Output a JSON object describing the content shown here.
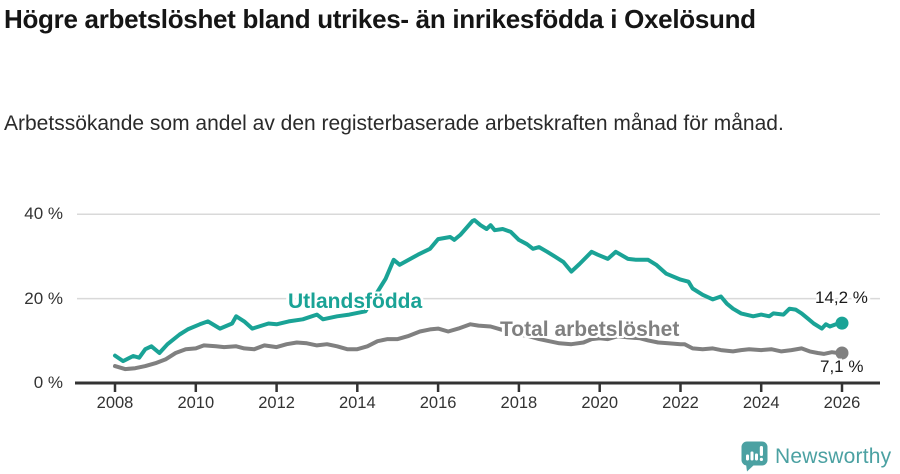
{
  "header": {
    "title": "Högre arbetslöshet bland utrikes- än inrikesfödda i Oxelösund",
    "subtitle": "Arbetssökande som andel av den registerbaserade arbetskraften månad för månad."
  },
  "footer": {
    "brand": "Newsworthy"
  },
  "colors": {
    "series_teal": "#1aa396",
    "series_gray": "#808080",
    "brand_teal": "#4ba1a2",
    "grid": "#d9d9d9",
    "axis": "#333333",
    "text": "#151515"
  },
  "chart_data": {
    "type": "line",
    "title": "Högre arbetslöshet bland utrikes- än inrikesfödda i Oxelösund",
    "subtitle": "Arbetssökande som andel av den registerbaserade arbetskraften månad för månad.",
    "unit": "%",
    "grid": "horizontal",
    "legend_position": "inline-labels",
    "x_axis": {
      "range": [
        2007.1,
        2026.9
      ],
      "ticks": [
        {
          "year": 2008,
          "label": "2008"
        },
        {
          "year": 2010,
          "label": "2010"
        },
        {
          "year": 2012,
          "label": "2012"
        },
        {
          "year": 2014,
          "label": "2014"
        },
        {
          "year": 2016,
          "label": "2016"
        },
        {
          "year": 2018,
          "label": "2018"
        },
        {
          "year": 2020,
          "label": "2020"
        },
        {
          "year": 2022,
          "label": "2022"
        },
        {
          "year": 2024,
          "label": "2024"
        },
        {
          "year": 2026,
          "label": "2026"
        }
      ]
    },
    "y_axis": {
      "range": [
        0,
        45
      ],
      "ticks": [
        {
          "value": 0,
          "label": "0 %"
        },
        {
          "value": 20,
          "label": "20 %"
        },
        {
          "value": 40,
          "label": "40 %"
        }
      ]
    },
    "series": [
      {
        "name": "Utlandsfödda",
        "slug": "utlandsfodda",
        "color": "#1aa396",
        "end_value": 14.2,
        "end_label": "14,2 %",
        "points": [
          [
            2008.0,
            6.5
          ],
          [
            2008.2,
            5.2
          ],
          [
            2008.45,
            6.4
          ],
          [
            2008.6,
            6.0
          ],
          [
            2008.75,
            8.0
          ],
          [
            2008.9,
            8.7
          ],
          [
            2009.1,
            7.1
          ],
          [
            2009.3,
            9.2
          ],
          [
            2009.6,
            11.5
          ],
          [
            2009.8,
            12.7
          ],
          [
            2010.1,
            13.9
          ],
          [
            2010.3,
            14.6
          ],
          [
            2010.6,
            12.9
          ],
          [
            2010.9,
            14.1
          ],
          [
            2011.0,
            15.8
          ],
          [
            2011.2,
            14.6
          ],
          [
            2011.4,
            12.9
          ],
          [
            2011.8,
            14.1
          ],
          [
            2012.0,
            13.9
          ],
          [
            2012.3,
            14.6
          ],
          [
            2012.65,
            15.1
          ],
          [
            2013.0,
            16.2
          ],
          [
            2013.15,
            15.1
          ],
          [
            2013.5,
            15.8
          ],
          [
            2013.8,
            16.2
          ],
          [
            2014.2,
            17.0
          ],
          [
            2014.5,
            21.6
          ],
          [
            2014.7,
            24.7
          ],
          [
            2014.9,
            29.2
          ],
          [
            2015.05,
            28.0
          ],
          [
            2015.5,
            30.4
          ],
          [
            2015.8,
            31.8
          ],
          [
            2016.0,
            34.1
          ],
          [
            2016.3,
            34.6
          ],
          [
            2016.4,
            33.9
          ],
          [
            2016.55,
            35.1
          ],
          [
            2016.85,
            38.4
          ],
          [
            2016.9,
            38.6
          ],
          [
            2017.05,
            37.4
          ],
          [
            2017.2,
            36.5
          ],
          [
            2017.3,
            37.4
          ],
          [
            2017.4,
            36.2
          ],
          [
            2017.6,
            36.5
          ],
          [
            2017.8,
            35.8
          ],
          [
            2018.0,
            33.9
          ],
          [
            2018.2,
            32.9
          ],
          [
            2018.35,
            31.8
          ],
          [
            2018.5,
            32.2
          ],
          [
            2018.7,
            31.1
          ],
          [
            2018.9,
            29.9
          ],
          [
            2019.1,
            28.7
          ],
          [
            2019.3,
            26.4
          ],
          [
            2019.5,
            28.2
          ],
          [
            2019.8,
            31.1
          ],
          [
            2019.95,
            30.4
          ],
          [
            2020.2,
            29.4
          ],
          [
            2020.4,
            31.1
          ],
          [
            2020.7,
            29.4
          ],
          [
            2020.9,
            29.2
          ],
          [
            2021.2,
            29.2
          ],
          [
            2021.4,
            28.0
          ],
          [
            2021.65,
            25.9
          ],
          [
            2022.0,
            24.5
          ],
          [
            2022.2,
            24.0
          ],
          [
            2022.3,
            22.4
          ],
          [
            2022.55,
            20.9
          ],
          [
            2022.8,
            19.8
          ],
          [
            2023.0,
            20.5
          ],
          [
            2023.15,
            18.8
          ],
          [
            2023.3,
            17.6
          ],
          [
            2023.5,
            16.5
          ],
          [
            2023.8,
            15.8
          ],
          [
            2024.0,
            16.2
          ],
          [
            2024.2,
            15.8
          ],
          [
            2024.3,
            16.5
          ],
          [
            2024.55,
            16.2
          ],
          [
            2024.7,
            17.6
          ],
          [
            2024.85,
            17.4
          ],
          [
            2025.0,
            16.5
          ],
          [
            2025.15,
            15.3
          ],
          [
            2025.3,
            14.1
          ],
          [
            2025.5,
            12.9
          ],
          [
            2025.6,
            13.9
          ],
          [
            2025.7,
            13.4
          ],
          [
            2025.9,
            14.1
          ],
          [
            2026.0,
            14.2
          ]
        ]
      },
      {
        "name": "Total arbetslöshet",
        "slug": "total-arbetsloshet",
        "color": "#808080",
        "end_value": 7.1,
        "end_label": "7,1 %",
        "points": [
          [
            2008.0,
            4.0
          ],
          [
            2008.25,
            3.3
          ],
          [
            2008.5,
            3.5
          ],
          [
            2008.75,
            4.0
          ],
          [
            2009.0,
            4.7
          ],
          [
            2009.25,
            5.6
          ],
          [
            2009.5,
            7.1
          ],
          [
            2009.75,
            8.0
          ],
          [
            2010.0,
            8.2
          ],
          [
            2010.2,
            8.9
          ],
          [
            2010.5,
            8.7
          ],
          [
            2010.7,
            8.5
          ],
          [
            2011.0,
            8.7
          ],
          [
            2011.2,
            8.2
          ],
          [
            2011.45,
            8.0
          ],
          [
            2011.7,
            8.9
          ],
          [
            2012.0,
            8.5
          ],
          [
            2012.25,
            9.2
          ],
          [
            2012.5,
            9.6
          ],
          [
            2012.75,
            9.4
          ],
          [
            2013.0,
            8.9
          ],
          [
            2013.25,
            9.2
          ],
          [
            2013.5,
            8.7
          ],
          [
            2013.75,
            8.0
          ],
          [
            2014.0,
            8.0
          ],
          [
            2014.25,
            8.7
          ],
          [
            2014.5,
            9.9
          ],
          [
            2014.75,
            10.4
          ],
          [
            2015.0,
            10.4
          ],
          [
            2015.25,
            11.1
          ],
          [
            2015.55,
            12.2
          ],
          [
            2015.8,
            12.7
          ],
          [
            2016.0,
            12.9
          ],
          [
            2016.25,
            12.2
          ],
          [
            2016.5,
            12.9
          ],
          [
            2016.8,
            13.9
          ],
          [
            2017.0,
            13.6
          ],
          [
            2017.3,
            13.4
          ],
          [
            2017.55,
            12.7
          ],
          [
            2017.8,
            12.0
          ],
          [
            2018.0,
            11.5
          ],
          [
            2018.25,
            11.1
          ],
          [
            2018.5,
            10.4
          ],
          [
            2018.75,
            9.9
          ],
          [
            2019.0,
            9.4
          ],
          [
            2019.3,
            9.2
          ],
          [
            2019.6,
            9.6
          ],
          [
            2019.8,
            10.4
          ],
          [
            2020.0,
            10.6
          ],
          [
            2020.2,
            10.4
          ],
          [
            2020.45,
            11.1
          ],
          [
            2020.7,
            10.8
          ],
          [
            2021.0,
            10.6
          ],
          [
            2021.2,
            10.1
          ],
          [
            2021.45,
            9.6
          ],
          [
            2021.7,
            9.4
          ],
          [
            2022.0,
            9.2
          ],
          [
            2022.1,
            9.2
          ],
          [
            2022.3,
            8.2
          ],
          [
            2022.55,
            8.0
          ],
          [
            2022.8,
            8.2
          ],
          [
            2023.0,
            7.8
          ],
          [
            2023.3,
            7.5
          ],
          [
            2023.5,
            7.8
          ],
          [
            2023.7,
            8.0
          ],
          [
            2024.0,
            7.8
          ],
          [
            2024.25,
            8.0
          ],
          [
            2024.5,
            7.5
          ],
          [
            2024.75,
            7.8
          ],
          [
            2025.0,
            8.2
          ],
          [
            2025.2,
            7.5
          ],
          [
            2025.4,
            7.1
          ],
          [
            2025.55,
            6.9
          ],
          [
            2025.75,
            7.3
          ],
          [
            2025.9,
            7.1
          ],
          [
            2026.0,
            7.1
          ]
        ]
      }
    ]
  }
}
